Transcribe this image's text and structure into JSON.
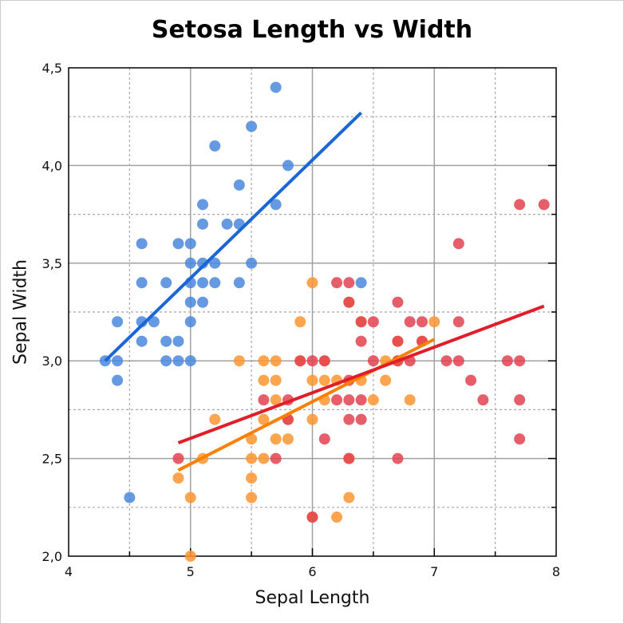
{
  "chart_data": {
    "type": "scatter",
    "title": "Setosa Length vs Width",
    "xlabel": "Sepal Length",
    "ylabel": "Sepal Width",
    "xlim": [
      4,
      8
    ],
    "ylim": [
      2.0,
      4.5
    ],
    "x_ticks": [
      "4",
      "5",
      "6",
      "7",
      "8"
    ],
    "y_ticks": [
      "2,0",
      "2,5",
      "3,0",
      "3,5",
      "4,0",
      "4,5"
    ],
    "grid": true,
    "colors": {
      "blue": "#4a88de",
      "orange": "#ff9430",
      "red": "#e2424f",
      "blue_line": "#1a66d6",
      "orange_line": "#ff7f00",
      "red_line": "#e01e2a"
    },
    "series": [
      {
        "color": "blue",
        "points": [
          [
            4.3,
            3.0
          ],
          [
            4.4,
            3.0
          ],
          [
            4.4,
            2.9
          ],
          [
            4.4,
            3.2
          ],
          [
            4.5,
            2.3
          ],
          [
            4.6,
            3.6
          ],
          [
            4.6,
            3.4
          ],
          [
            4.6,
            3.2
          ],
          [
            4.6,
            3.1
          ],
          [
            4.7,
            3.2
          ],
          [
            4.8,
            3.4
          ],
          [
            4.8,
            3.1
          ],
          [
            4.8,
            3.0
          ],
          [
            4.9,
            3.6
          ],
          [
            4.9,
            3.1
          ],
          [
            4.9,
            3.0
          ],
          [
            5.0,
            3.6
          ],
          [
            5.0,
            3.5
          ],
          [
            5.0,
            3.4
          ],
          [
            5.0,
            3.3
          ],
          [
            5.0,
            3.2
          ],
          [
            5.0,
            3.0
          ],
          [
            5.1,
            3.8
          ],
          [
            5.1,
            3.7
          ],
          [
            5.1,
            3.5
          ],
          [
            5.1,
            3.4
          ],
          [
            5.1,
            3.3
          ],
          [
            5.2,
            4.1
          ],
          [
            5.2,
            3.5
          ],
          [
            5.2,
            3.4
          ],
          [
            5.3,
            3.7
          ],
          [
            5.4,
            3.9
          ],
          [
            5.4,
            3.7
          ],
          [
            5.4,
            3.4
          ],
          [
            5.5,
            4.2
          ],
          [
            5.5,
            3.5
          ],
          [
            5.7,
            4.4
          ],
          [
            5.7,
            3.8
          ],
          [
            5.8,
            4.0
          ],
          [
            6.4,
            3.4
          ]
        ],
        "fit": [
          [
            4.3,
            3.0
          ],
          [
            6.4,
            4.27
          ]
        ]
      },
      {
        "color": "orange",
        "points": [
          [
            7.0,
            3.2
          ],
          [
            6.4,
            3.2
          ],
          [
            6.9,
            3.1
          ],
          [
            5.5,
            2.3
          ],
          [
            6.5,
            2.8
          ],
          [
            5.7,
            2.8
          ],
          [
            6.3,
            3.3
          ],
          [
            4.9,
            2.4
          ],
          [
            6.6,
            2.9
          ],
          [
            5.2,
            2.7
          ],
          [
            5.0,
            2.0
          ],
          [
            5.9,
            3.0
          ],
          [
            6.0,
            2.2
          ],
          [
            6.1,
            2.9
          ],
          [
            5.6,
            2.9
          ],
          [
            6.7,
            3.1
          ],
          [
            5.6,
            3.0
          ],
          [
            5.8,
            2.7
          ],
          [
            6.2,
            2.2
          ],
          [
            5.6,
            2.5
          ],
          [
            5.9,
            3.2
          ],
          [
            6.1,
            2.8
          ],
          [
            6.3,
            2.5
          ],
          [
            6.4,
            2.9
          ],
          [
            6.6,
            3.0
          ],
          [
            6.8,
            2.8
          ],
          [
            6.7,
            3.0
          ],
          [
            6.0,
            2.9
          ],
          [
            5.7,
            2.6
          ],
          [
            5.5,
            2.4
          ],
          [
            6.0,
            2.7
          ],
          [
            5.4,
            3.0
          ],
          [
            6.0,
            3.4
          ],
          [
            6.3,
            2.3
          ],
          [
            5.5,
            2.5
          ],
          [
            5.5,
            2.6
          ],
          [
            6.1,
            3.0
          ],
          [
            5.8,
            2.6
          ],
          [
            5.0,
            2.3
          ],
          [
            5.6,
            2.7
          ],
          [
            5.7,
            3.0
          ],
          [
            5.7,
            2.9
          ],
          [
            6.2,
            2.9
          ],
          [
            5.1,
            2.5
          ]
        ],
        "fit": [
          [
            4.9,
            2.44
          ],
          [
            7.0,
            3.11
          ]
        ]
      },
      {
        "color": "red",
        "points": [
          [
            6.3,
            3.3
          ],
          [
            5.8,
            2.7
          ],
          [
            7.1,
            3.0
          ],
          [
            6.3,
            2.9
          ],
          [
            6.5,
            3.0
          ],
          [
            7.6,
            3.0
          ],
          [
            4.9,
            2.5
          ],
          [
            7.3,
            2.9
          ],
          [
            6.7,
            2.5
          ],
          [
            7.2,
            3.6
          ],
          [
            6.5,
            3.2
          ],
          [
            6.4,
            2.7
          ],
          [
            6.8,
            3.0
          ],
          [
            5.7,
            2.5
          ],
          [
            5.8,
            2.8
          ],
          [
            6.4,
            3.2
          ],
          [
            7.7,
            3.8
          ],
          [
            7.7,
            2.6
          ],
          [
            6.0,
            2.2
          ],
          [
            6.9,
            3.2
          ],
          [
            5.6,
            2.8
          ],
          [
            7.7,
            2.8
          ],
          [
            6.3,
            2.7
          ],
          [
            6.7,
            3.3
          ],
          [
            7.2,
            3.2
          ],
          [
            6.2,
            2.8
          ],
          [
            6.1,
            3.0
          ],
          [
            6.4,
            2.8
          ],
          [
            7.2,
            3.0
          ],
          [
            7.4,
            2.8
          ],
          [
            7.9,
            3.8
          ],
          [
            6.3,
            2.8
          ],
          [
            6.1,
            2.6
          ],
          [
            7.7,
            3.0
          ],
          [
            6.3,
            3.4
          ],
          [
            6.4,
            3.1
          ],
          [
            6.0,
            3.0
          ],
          [
            6.9,
            3.1
          ],
          [
            6.7,
            3.1
          ],
          [
            6.8,
            3.2
          ],
          [
            6.7,
            3.0
          ],
          [
            6.3,
            2.5
          ],
          [
            6.2,
            3.4
          ],
          [
            5.9,
            3.0
          ]
        ],
        "fit": [
          [
            4.9,
            2.58
          ],
          [
            7.9,
            3.28
          ]
        ]
      }
    ]
  }
}
